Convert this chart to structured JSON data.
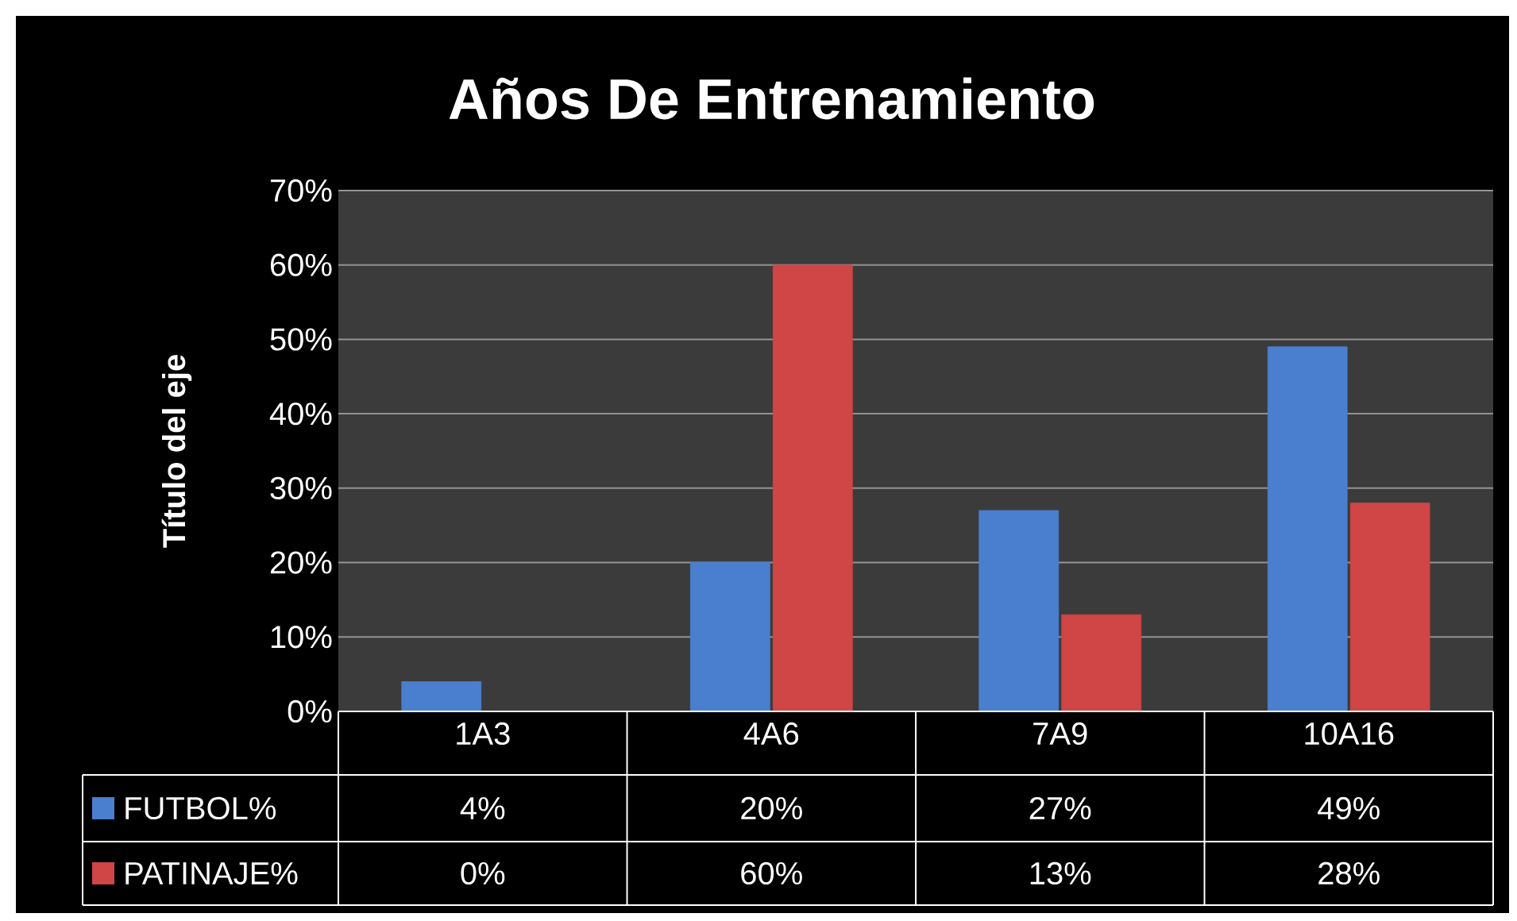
{
  "chart_data": {
    "type": "bar",
    "title": "Años De Entrenamiento",
    "ylabel": "Título del eje",
    "categories": [
      "1A3",
      "4A6",
      "7A9",
      "10A16"
    ],
    "series": [
      {
        "name": "FUTBOL%",
        "color": "#4a7fd0",
        "values": [
          4,
          20,
          27,
          49
        ],
        "value_labels": [
          "4%",
          "20%",
          "27%",
          "49%"
        ]
      },
      {
        "name": "PATINAJE%",
        "color": "#d04545",
        "values": [
          0,
          60,
          13,
          28
        ],
        "value_labels": [
          "0%",
          "60%",
          "13%",
          "28%"
        ]
      }
    ],
    "ylim": [
      0,
      70
    ],
    "yticks": [
      {
        "value": 0,
        "label": "0%"
      },
      {
        "value": 10,
        "label": "10%"
      },
      {
        "value": 20,
        "label": "20%"
      },
      {
        "value": 30,
        "label": "30%"
      },
      {
        "value": 40,
        "label": "40%"
      },
      {
        "value": 50,
        "label": "50%"
      },
      {
        "value": 60,
        "label": "60%"
      },
      {
        "value": 70,
        "label": "70%"
      }
    ],
    "grid": "y",
    "legend": "bottom"
  }
}
